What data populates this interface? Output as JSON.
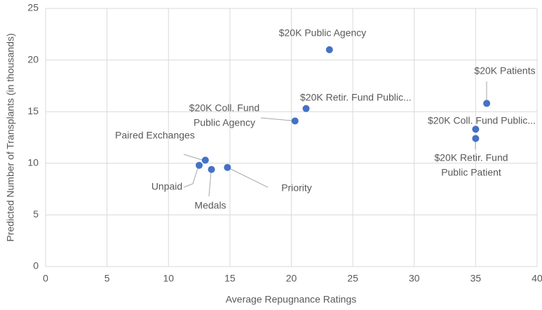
{
  "chart_data": {
    "type": "scatter",
    "x_label": "Average Repugnance Ratings",
    "y_label": "Predicted Number of Transplants (in thousands)",
    "color": "#4472c4",
    "xlim": [
      0,
      40
    ],
    "xticks": [
      0,
      5,
      10,
      15,
      20,
      25,
      30,
      35,
      40
    ],
    "ylim": [
      0,
      25
    ],
    "yticks": [
      0,
      5,
      10,
      15,
      20,
      25
    ],
    "grid": true,
    "x": [
      23.1,
      35.9,
      35.0,
      35.0,
      21.2,
      20.3,
      13.0,
      12.5,
      13.5,
      14.8
    ],
    "values": [
      21.0,
      15.8,
      13.3,
      12.4,
      15.3,
      14.1,
      10.3,
      9.8,
      9.4,
      9.6
    ],
    "labels": [
      [
        "$20K Public Agency"
      ],
      [
        "$20K Patients"
      ],
      [
        "$20K Coll. Fund Public..."
      ],
      [
        "$20K Retir. Fund",
        "Public Patient"
      ],
      [
        "$20K Retir. Fund Public..."
      ],
      [
        "$20K Coll. Fund",
        "Public Agency"
      ],
      [
        "Paired Exchanges"
      ],
      [
        "Unpaid"
      ],
      [
        "Medals"
      ],
      [
        "Priority"
      ]
    ]
  }
}
